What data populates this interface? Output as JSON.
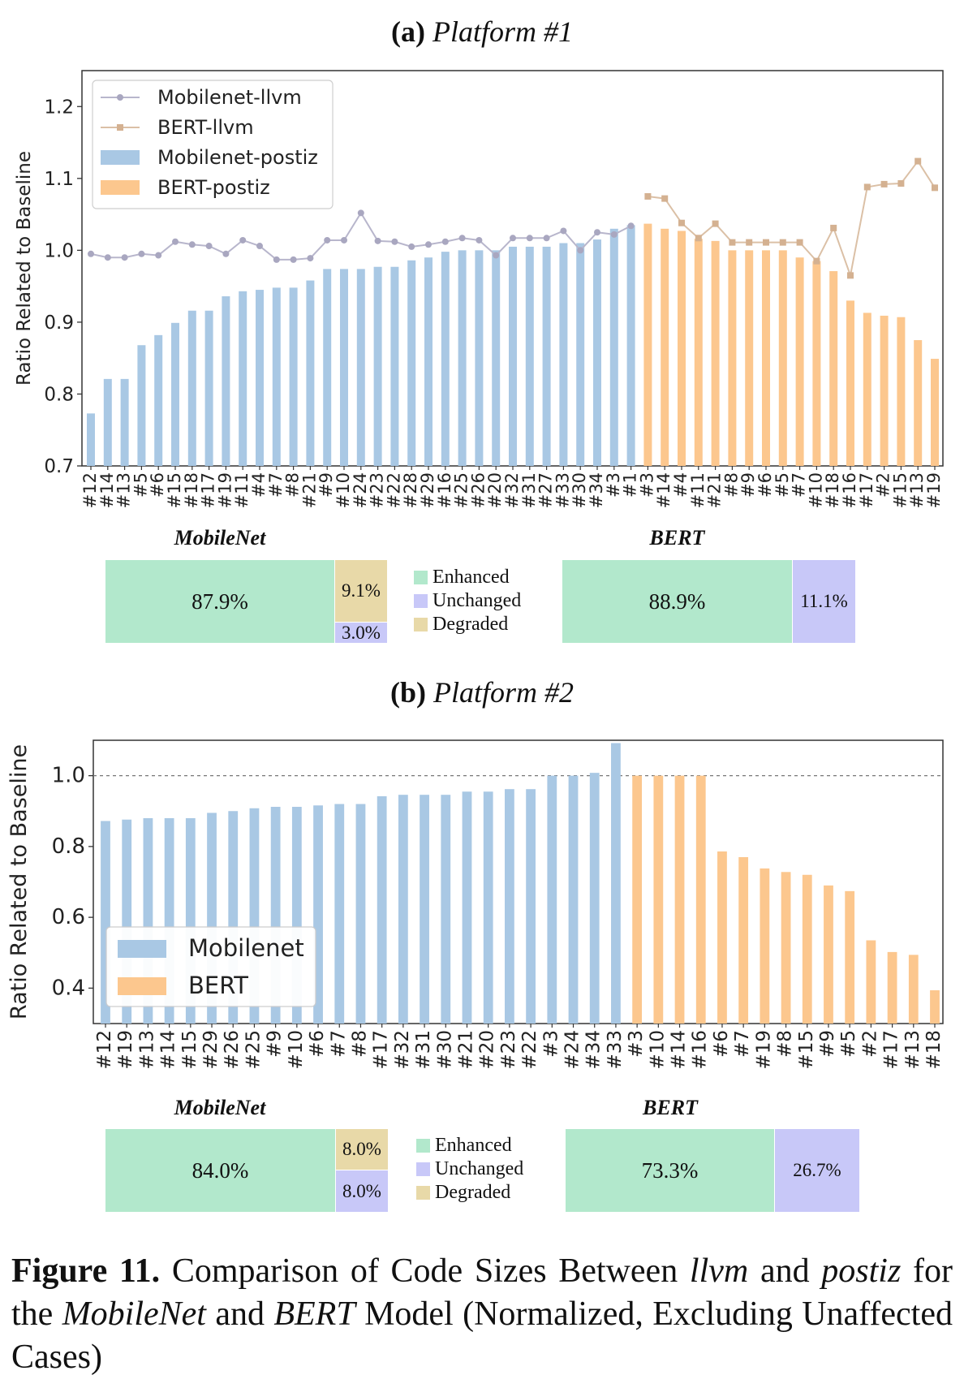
{
  "colors": {
    "mobilenet_bar": "#a9c8e4",
    "bert_bar": "#fcc78e",
    "mobilenet_line": "#b8b6cc",
    "bert_line": "#dbc0a6",
    "enhanced": "#b2e8cc",
    "unchanged": "#c8c8f8",
    "degraded": "#e8d9a8"
  },
  "chart_data": [
    {
      "type": "bar",
      "panel_label": "(a)",
      "panel_name": "Platform #1",
      "ylabel": "Ratio Related to Baseline",
      "ylim": [
        0.7,
        1.25
      ],
      "yticks": [
        "0.7",
        "0.8",
        "0.9",
        "1.0",
        "1.1",
        "1.2"
      ],
      "grid": false,
      "legend_position": "top-left",
      "legend": [
        "Mobilenet-llvm",
        "BERT-llvm",
        "Mobilenet-postiz",
        "BERT-postiz"
      ],
      "groups": [
        {
          "name": "Mobilenet",
          "categories": [
            "#12",
            "#14",
            "#13",
            "#5",
            "#6",
            "#15",
            "#18",
            "#17",
            "#19",
            "#11",
            "#4",
            "#7",
            "#8",
            "#21",
            "#9",
            "#10",
            "#24",
            "#23",
            "#22",
            "#28",
            "#29",
            "#16",
            "#25",
            "#26",
            "#20",
            "#32",
            "#31",
            "#27",
            "#33",
            "#30",
            "#34",
            "#3",
            "#1"
          ],
          "postiz": [
            0.773,
            0.821,
            0.821,
            0.868,
            0.882,
            0.899,
            0.916,
            0.916,
            0.936,
            0.943,
            0.945,
            0.948,
            0.948,
            0.958,
            0.974,
            0.974,
            0.974,
            0.977,
            0.977,
            0.986,
            0.99,
            0.998,
            1.0,
            1.0,
            1.0,
            1.005,
            1.005,
            1.005,
            1.01,
            1.01,
            1.015,
            1.03,
            1.035
          ],
          "llvm": [
            0.995,
            0.99,
            0.99,
            0.995,
            0.993,
            1.012,
            1.008,
            1.006,
            0.995,
            1.014,
            1.006,
            0.987,
            0.987,
            0.989,
            1.014,
            1.014,
            1.052,
            1.013,
            1.012,
            1.005,
            1.008,
            1.012,
            1.017,
            1.014,
            0.993,
            1.017,
            1.017,
            1.017,
            1.027,
            1.0,
            1.025,
            1.022,
            1.034
          ]
        },
        {
          "name": "BERT",
          "categories": [
            "#3",
            "#14",
            "#4",
            "#11",
            "#21",
            "#8",
            "#9",
            "#6",
            "#5",
            "#7",
            "#10",
            "#18",
            "#16",
            "#17",
            "#2",
            "#15",
            "#13",
            "#19"
          ],
          "postiz": [
            1.037,
            1.03,
            1.027,
            1.016,
            1.013,
            1.0,
            1.0,
            1.0,
            1.0,
            0.99,
            0.985,
            0.971,
            0.93,
            0.913,
            0.909,
            0.907,
            0.875,
            0.849
          ],
          "llvm": [
            1.075,
            1.072,
            1.038,
            1.017,
            1.037,
            1.011,
            1.011,
            1.011,
            1.011,
            1.011,
            0.985,
            1.031,
            0.965,
            1.088,
            1.092,
            1.093,
            1.124,
            1.087
          ]
        }
      ],
      "summary": {
        "mobilenet": {
          "title": "MobileNet",
          "enhanced": "87.9%",
          "degraded": "9.1%",
          "unchanged": "3.0%"
        },
        "bert": {
          "title": "BERT",
          "enhanced": "88.9%",
          "unchanged": "11.1%"
        },
        "legend": [
          "Enhanced",
          "Unchanged",
          "Degraded"
        ]
      }
    },
    {
      "type": "bar",
      "panel_label": "(b)",
      "panel_name": "Platform #2",
      "ylabel": "Ratio Related to Baseline",
      "ylim": [
        0.3,
        1.1
      ],
      "yticks": [
        "0.4",
        "0.6",
        "0.8",
        "1.0"
      ],
      "reference_line": 1.0,
      "grid": false,
      "legend_position": "lower-left",
      "legend": [
        "Mobilenet",
        "BERT"
      ],
      "groups": [
        {
          "name": "Mobilenet",
          "categories": [
            "#12",
            "#19",
            "#13",
            "#14",
            "#15",
            "#29",
            "#26",
            "#25",
            "#9",
            "#10",
            "#6",
            "#7",
            "#8",
            "#17",
            "#32",
            "#31",
            "#30",
            "#21",
            "#20",
            "#23",
            "#22",
            "#3",
            "#24",
            "#34",
            "#33"
          ],
          "values": [
            0.872,
            0.876,
            0.88,
            0.88,
            0.88,
            0.895,
            0.9,
            0.908,
            0.912,
            0.912,
            0.916,
            0.92,
            0.92,
            0.942,
            0.946,
            0.946,
            0.946,
            0.955,
            0.955,
            0.962,
            0.962,
            1.0,
            1.0,
            1.008,
            1.092
          ]
        },
        {
          "name": "BERT",
          "categories": [
            "#3",
            "#10",
            "#14",
            "#16",
            "#6",
            "#7",
            "#19",
            "#8",
            "#15",
            "#9",
            "#5",
            "#2",
            "#17",
            "#13",
            "#18"
          ],
          "values": [
            1.0,
            1.0,
            1.0,
            1.0,
            0.786,
            0.77,
            0.738,
            0.728,
            0.72,
            0.69,
            0.674,
            0.535,
            0.502,
            0.494,
            0.394
          ]
        }
      ],
      "summary": {
        "mobilenet": {
          "title": "MobileNet",
          "enhanced": "84.0%",
          "degraded": "8.0%",
          "unchanged": "8.0%"
        },
        "bert": {
          "title": "BERT",
          "enhanced": "73.3%",
          "unchanged": "26.7%"
        },
        "legend": [
          "Enhanced",
          "Unchanged",
          "Degraded"
        ]
      }
    }
  ],
  "caption": {
    "label": "Figure 11.",
    "text_1": " Comparison of Code Sizes Between ",
    "term_1": "llvm",
    "text_2": " and ",
    "term_2": "postiz",
    "text_3": " for the ",
    "term_3": "MobileNet",
    "text_4": " and ",
    "term_4": "BERT",
    "text_5": " Model (Normalized, Excluding Unaffected Cases)"
  }
}
